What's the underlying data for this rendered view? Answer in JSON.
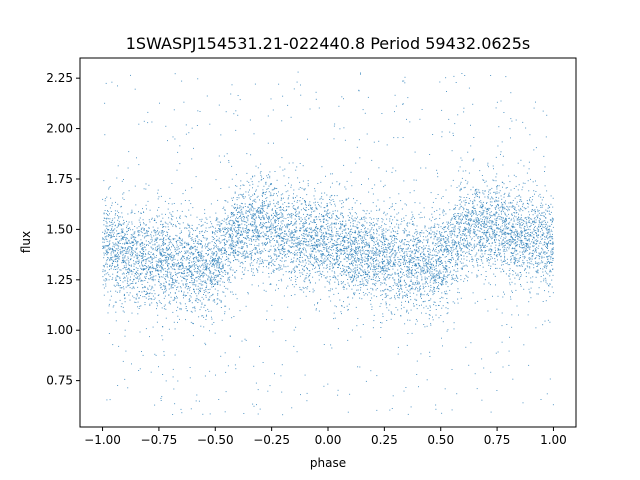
{
  "chart_data": {
    "type": "scatter",
    "title": "1SWASPJ154531.21-022440.8 Period 59432.0625s",
    "xlabel": "phase",
    "ylabel": "flux",
    "xlim": [
      -1.1,
      1.1
    ],
    "ylim": [
      0.52,
      2.35
    ],
    "x_ticks": [
      -1.0,
      -0.75,
      -0.5,
      -0.25,
      0.0,
      0.25,
      0.5,
      0.75,
      1.0
    ],
    "x_tick_labels": [
      "−1.00",
      "−0.75",
      "−0.50",
      "−0.25",
      "0.00",
      "0.25",
      "0.50",
      "0.75",
      "1.00"
    ],
    "y_ticks": [
      0.75,
      1.0,
      1.25,
      1.5,
      1.75,
      2.0,
      2.25
    ],
    "y_tick_labels": [
      "0.75",
      "1.00",
      "1.25",
      "1.50",
      "1.75",
      "2.00",
      "2.25"
    ],
    "grid": false,
    "marker_color": "#1f77b4",
    "series": [
      {
        "x_range": [
          -1.0,
          1.0
        ],
        "phase_fold_period": 1.0,
        "profile_phase": [
          0.0,
          0.05,
          0.1,
          0.15,
          0.2,
          0.25,
          0.3,
          0.35,
          0.4,
          0.45,
          0.5,
          0.55,
          0.6,
          0.65,
          0.7,
          0.75,
          0.8,
          0.85,
          0.9,
          0.95,
          1.0
        ],
        "profile_flux": [
          1.43,
          1.41,
          1.39,
          1.37,
          1.36,
          1.35,
          1.35,
          1.34,
          1.33,
          1.32,
          1.35,
          1.42,
          1.48,
          1.51,
          1.52,
          1.51,
          1.49,
          1.47,
          1.45,
          1.44,
          1.43
        ],
        "scatter_sigma": 0.12,
        "flux_min": 0.58,
        "flux_max": 2.28
      }
    ]
  }
}
